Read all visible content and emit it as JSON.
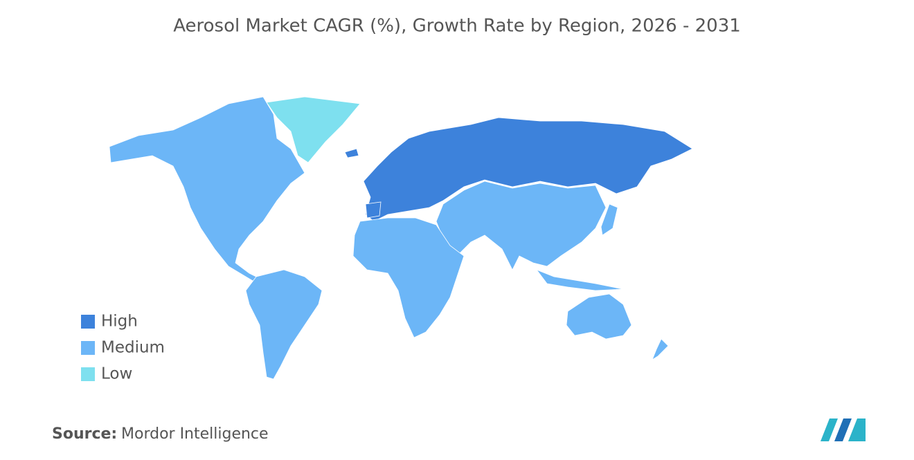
{
  "title": "Aerosol Market CAGR (%), Growth Rate by Region, 2026 - 2031",
  "legend": [
    {
      "label": "High",
      "color": "#3d82db"
    },
    {
      "label": "Medium",
      "color": "#6cb6f7"
    },
    {
      "label": "Low",
      "color": "#7ee0ef"
    }
  ],
  "source": {
    "label": "Source:",
    "text": "Mordor Intelligence"
  }
}
